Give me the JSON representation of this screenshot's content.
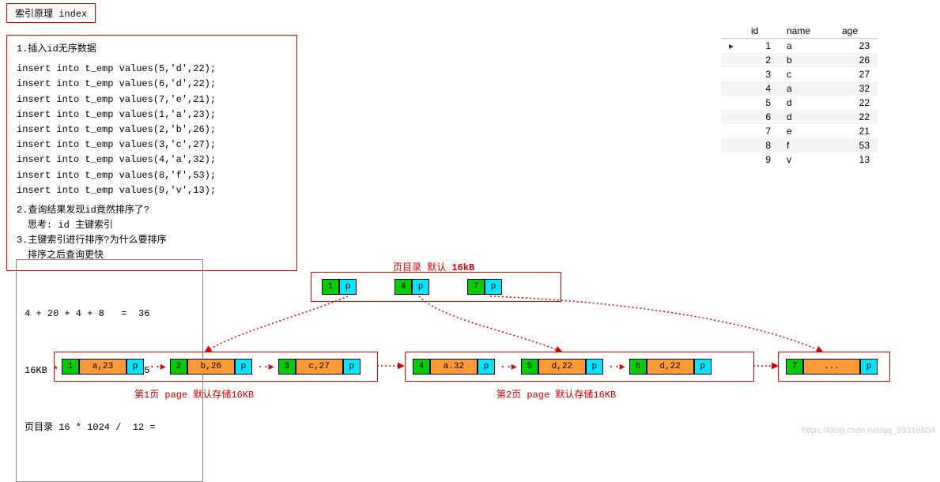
{
  "title": "索引原理 index",
  "notes": {
    "line1": "1.插入id无序数据",
    "sql": "insert into t_emp values(5,'d',22);\ninsert into t_emp values(6,'d',22);\ninsert into t_emp values(7,'e',21);\ninsert into t_emp values(1,'a',23);\ninsert into t_emp values(2,'b',26);\ninsert into t_emp values(3,'c',27);\ninsert into t_emp values(4,'a',32);\ninsert into t_emp values(8,'f',53);\ninsert into t_emp values(9,'v',13);",
    "line2a": "2.查询结果发现id竟然排序了?",
    "line2b": "思考: id 主键索引",
    "line3a": "3.主键索引进行排序?为什么要排序",
    "line3b": "排序之后查询更快"
  },
  "calc": {
    "l1": "4 + 20 + 4 + 8   =  36",
    "l2": "16KB * 1024 / 36 = 455",
    "l3": "页目录 16 * 1024 /  12 ="
  },
  "table": {
    "headers": [
      "id",
      "name",
      "age"
    ],
    "rows": [
      [
        "1",
        "a",
        "23"
      ],
      [
        "2",
        "b",
        "26"
      ],
      [
        "3",
        "c",
        "27"
      ],
      [
        "4",
        "a",
        "32"
      ],
      [
        "5",
        "d",
        "22"
      ],
      [
        "6",
        "d",
        "22"
      ],
      [
        "7",
        "e",
        "21"
      ],
      [
        "8",
        "f",
        "53"
      ],
      [
        "9",
        "v",
        "13"
      ]
    ]
  },
  "dirLabel": "页目录 默认",
  "dirLabelSize": "16kB",
  "dir": {
    "entries": [
      {
        "id": "1",
        "p": "p"
      },
      {
        "id": "4",
        "p": "p"
      },
      {
        "id": "7",
        "p": "p"
      }
    ]
  },
  "pages": {
    "p1": {
      "label": "第1页 page  默认存储16KB",
      "records": [
        {
          "id": "1",
          "data": "a,23",
          "p": "p"
        },
        {
          "id": "2",
          "data": "b,26",
          "p": "p"
        },
        {
          "id": "3",
          "data": "c,27",
          "p": "p"
        }
      ]
    },
    "p2": {
      "label": "第2页 page  默认存储16KB",
      "records": [
        {
          "id": "4",
          "data": "a.32",
          "p": "p"
        },
        {
          "id": "5",
          "data": "d,22",
          "p": "p"
        },
        {
          "id": "6",
          "data": "d,22",
          "p": "p"
        }
      ]
    },
    "p3": {
      "records": [
        {
          "id": "7",
          "data": "...",
          "p": "p"
        }
      ]
    }
  },
  "colors": {
    "accent": "#cc0000",
    "idCell": "#00cc00",
    "dataCell": "#ff9933",
    "ptrCell": "#00e5ff",
    "border": "#cc0000"
  },
  "watermark": "https://blog.csdn.net/qq_39316804",
  "dataWidth": 60,
  "dataWidthS": 70
}
